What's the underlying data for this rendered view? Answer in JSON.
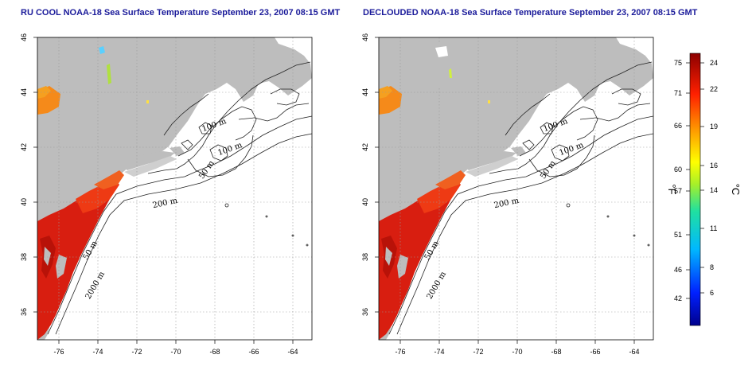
{
  "panels": [
    {
      "title": "RU COOL NOAA-18 Sea Surface Temperature September 23, 2007 08:15 GMT",
      "x_ticks": [
        "-76",
        "-74",
        "-72",
        "-70",
        "-68",
        "-66",
        "-64"
      ],
      "y_ticks": [
        "46",
        "44",
        "42",
        "40",
        "38",
        "36"
      ],
      "contour_labels": [
        "100 m",
        "100 m",
        "50 m",
        "200 m",
        "50 m",
        "2000 m"
      ]
    },
    {
      "title": "DECLOUDED NOAA-18 Sea Surface Temperature September 23, 2007 08:15 GMT",
      "x_ticks": [
        "-76",
        "-74",
        "-72",
        "-70",
        "-68",
        "-66",
        "-64"
      ],
      "y_ticks": [
        "46",
        "44",
        "42",
        "40",
        "38",
        "36"
      ],
      "contour_labels": [
        "100 m",
        "100 m",
        "50 m",
        "200 m",
        "50 m",
        "2000 m"
      ]
    }
  ],
  "colorbar": {
    "fahrenheit_label": "°F",
    "celsius_label": "°C",
    "fahrenheit_ticks": [
      "75",
      "71",
      "66",
      "60",
      "57",
      "51",
      "46",
      "42"
    ],
    "celsius_ticks": [
      "24",
      "22",
      "19",
      "16",
      "14",
      "11",
      "8",
      "6"
    ]
  }
}
